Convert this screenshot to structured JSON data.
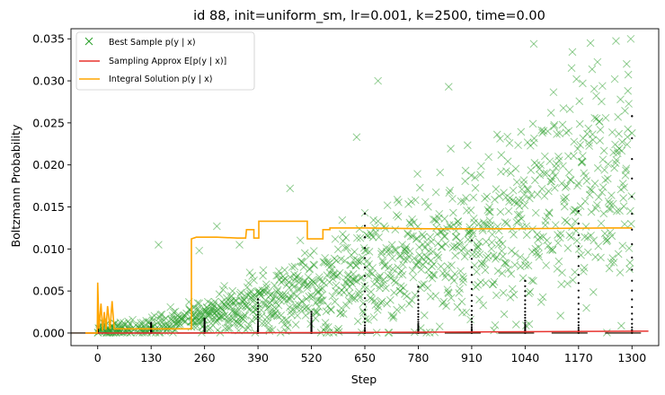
{
  "chart_data": {
    "type": "line",
    "title": "id 88, init=uniform_sm, lr=0.001, k=2500, time=0.00",
    "xlabel": "Step",
    "ylabel": "Boltzmann Probability",
    "xlim": [
      -65,
      1365
    ],
    "ylim": [
      -0.0015,
      0.0362
    ],
    "xticks": [
      0,
      130,
      260,
      390,
      520,
      650,
      780,
      910,
      1040,
      1170,
      1300
    ],
    "yticks": [
      0.0,
      0.005,
      0.01,
      0.015,
      0.02,
      0.025,
      0.03,
      0.035
    ],
    "ytick_labels": [
      "0.000",
      "0.005",
      "0.010",
      "0.015",
      "0.020",
      "0.025",
      "0.030",
      "0.035"
    ],
    "grid": false,
    "legend_position": "upper-left",
    "colors": {
      "best_sample": "#2ca02c",
      "sampling_approx": "#e8332f",
      "integral_solution": "#ffa500",
      "dots": "#000000"
    },
    "series": [
      {
        "name": "Best Sample p(y | x)",
        "style": "scatter-x",
        "description_trend": [
          [
            0,
            0.0003
          ],
          [
            130,
            0.0008
          ],
          [
            260,
            0.002
          ],
          [
            390,
            0.0035
          ],
          [
            520,
            0.005
          ],
          [
            650,
            0.007
          ],
          [
            780,
            0.009
          ],
          [
            910,
            0.011
          ],
          [
            1040,
            0.013
          ],
          [
            1170,
            0.016
          ],
          [
            1300,
            0.019
          ]
        ],
        "notable_points": [
          [
            148,
            0.0105
          ],
          [
            247,
            0.0098
          ],
          [
            290,
            0.0127
          ],
          [
            345,
            0.0105
          ],
          [
            468,
            0.0172
          ],
          [
            650,
            0.0143
          ],
          [
            682,
            0.03
          ],
          [
            854,
            0.0293
          ],
          [
            1061,
            0.0344
          ],
          [
            1180,
            0.0297
          ],
          [
            1290,
            0.0288
          ],
          [
            630,
            0.0233
          ]
        ]
      },
      {
        "name": "Sampling Approx E[p(y | x)]",
        "style": "line",
        "points": [
          [
            -30,
            0.0
          ],
          [
            200,
            0.0
          ],
          [
            500,
            5e-05
          ],
          [
            800,
            0.0001
          ],
          [
            1040,
            0.00015
          ],
          [
            1200,
            0.0002
          ],
          [
            1340,
            0.00022
          ]
        ]
      },
      {
        "name": "Integral Solution p(y | x)",
        "style": "step",
        "points": [
          [
            -30,
            0.0
          ],
          [
            -1,
            0.0
          ],
          [
            0,
            0.006
          ],
          [
            3,
            0.0005
          ],
          [
            8,
            0.0035
          ],
          [
            12,
            0.0003
          ],
          [
            16,
            0.0025
          ],
          [
            20,
            0.0004
          ],
          [
            24,
            0.0032
          ],
          [
            30,
            0.0005
          ],
          [
            35,
            0.0038
          ],
          [
            40,
            0.0005
          ],
          [
            50,
            0.0005
          ],
          [
            100,
            0.0005
          ],
          [
            228,
            0.0005
          ],
          [
            228,
            0.0112
          ],
          [
            240,
            0.0114
          ],
          [
            290,
            0.0114
          ],
          [
            340,
            0.0113
          ],
          [
            360,
            0.0113
          ],
          [
            362,
            0.0123
          ],
          [
            380,
            0.0123
          ],
          [
            380,
            0.0113
          ],
          [
            392,
            0.0113
          ],
          [
            392,
            0.0133
          ],
          [
            510,
            0.0133
          ],
          [
            510,
            0.0112
          ],
          [
            548,
            0.0112
          ],
          [
            548,
            0.0123
          ],
          [
            565,
            0.0123
          ],
          [
            565,
            0.0125
          ],
          [
            650,
            0.0125
          ],
          [
            800,
            0.0124
          ],
          [
            1000,
            0.0124
          ],
          [
            1240,
            0.0125
          ],
          [
            1300,
            0.0125
          ],
          [
            1300,
            0.0125
          ]
        ]
      }
    ],
    "dot_columns": [
      {
        "x": 0,
        "ymax": 0.001
      },
      {
        "x": 130,
        "ymax": 0.0012
      },
      {
        "x": 260,
        "ymax": 0.0017
      },
      {
        "x": 390,
        "ymax": 0.004
      },
      {
        "x": 520,
        "ymax": 0.0025
      },
      {
        "x": 650,
        "ymax": 0.0142
      },
      {
        "x": 780,
        "ymax": 0.0055
      },
      {
        "x": 910,
        "ymax": 0.011
      },
      {
        "x": 1040,
        "ymax": 0.0062
      },
      {
        "x": 1170,
        "ymax": 0.0145
      },
      {
        "x": 1300,
        "ymax": 0.0258
      }
    ]
  }
}
